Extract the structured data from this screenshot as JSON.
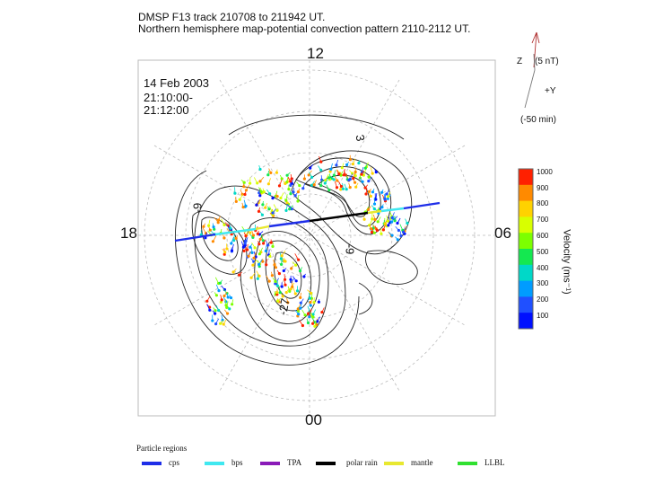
{
  "title": {
    "line1": "DMSP F13 track 210708 to 211942 UT.",
    "line2": "Northern hemisphere map-potential convection pattern 2110-2112 UT."
  },
  "mlt_labels": {
    "top": "12",
    "left": "18",
    "right": "06",
    "bottom": "00"
  },
  "date_box": {
    "date": "14 Feb 2003",
    "start": "21:10:00-",
    "end": "21:12:00"
  },
  "contour_labels": {
    "upper": "3",
    "left": "-9",
    "center": "-9",
    "lower": "-27"
  },
  "imf_clock": {
    "z_label": "Z",
    "magnitude": "(5 nT)",
    "y_label": "+Y",
    "delay": "(-50 min)"
  },
  "colorbar": {
    "title": "Velocity (ms⁻¹)",
    "ticks": [
      "1000",
      "900",
      "800",
      "700",
      "600",
      "500",
      "400",
      "300",
      "200",
      "100"
    ],
    "colors": [
      "#ff2000",
      "#ff8a00",
      "#ffd200",
      "#d8ff00",
      "#7cff00",
      "#14e850",
      "#00d8c8",
      "#009cff",
      "#2050ff",
      "#0010ff"
    ]
  },
  "legend": {
    "title": "Particle regions",
    "items": [
      {
        "label": "cps",
        "color": "#1e2ee8"
      },
      {
        "label": "bps",
        "color": "#40e8f0"
      },
      {
        "label": "TPA",
        "color": "#8a1ab8"
      },
      {
        "label": "polar rain",
        "color": "#000000"
      },
      {
        "label": "mantle",
        "color": "#e8e830"
      },
      {
        "label": "LLBL",
        "color": "#30e030"
      }
    ]
  }
}
